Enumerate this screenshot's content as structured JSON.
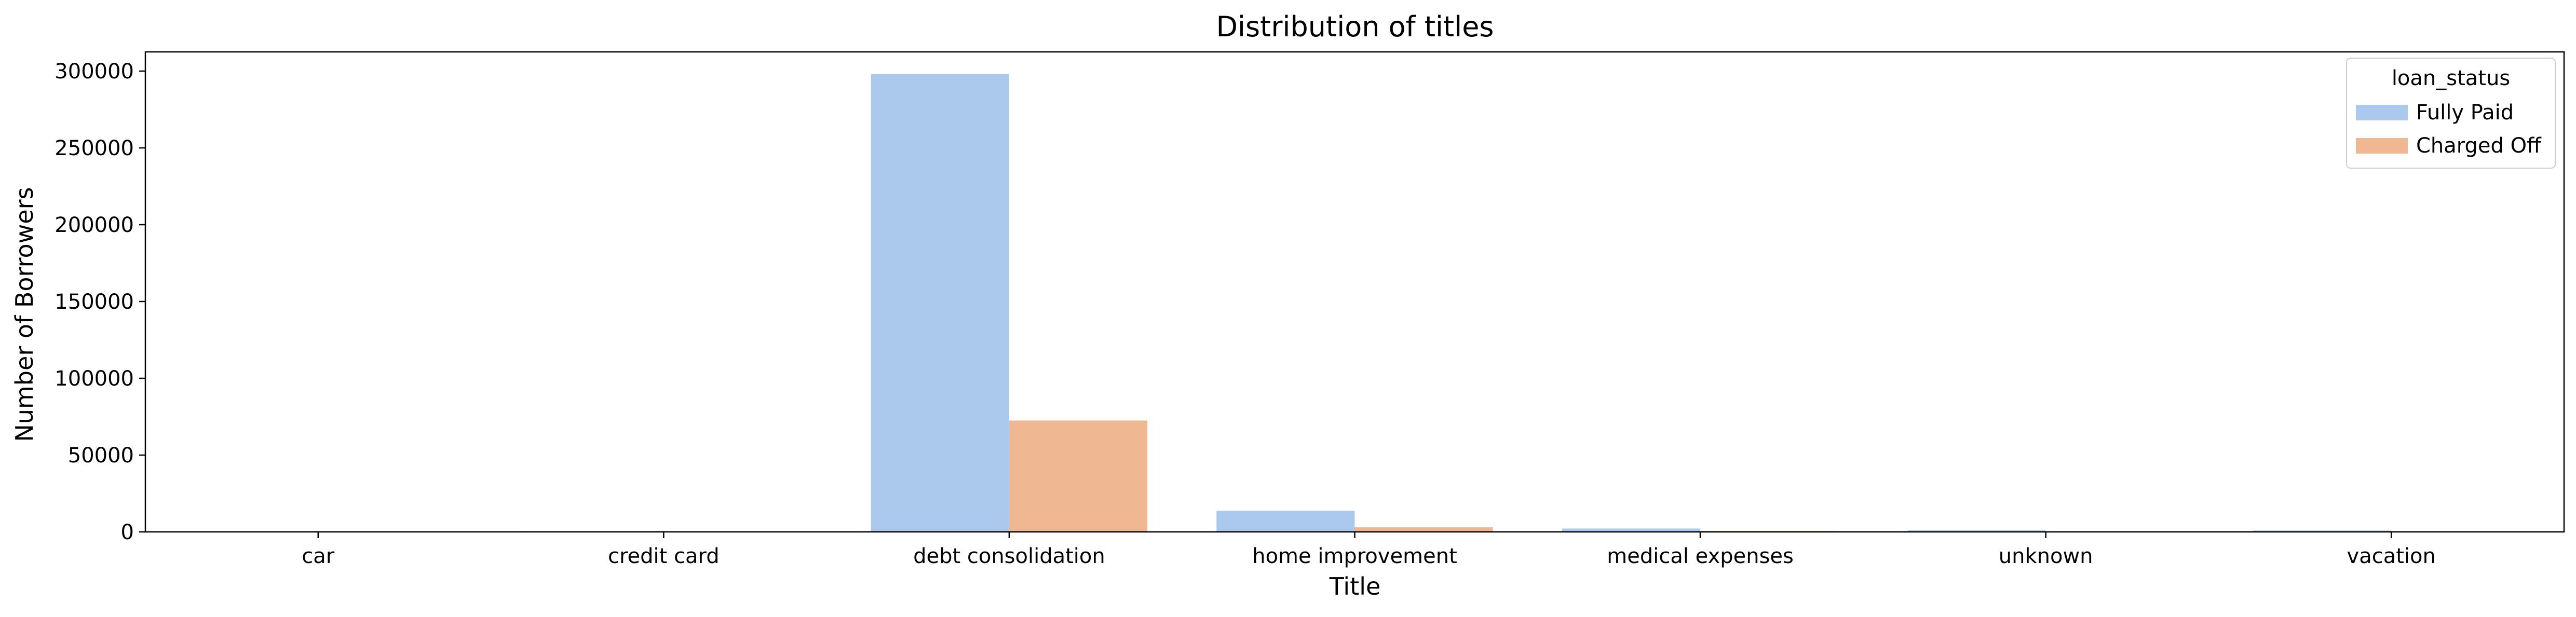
{
  "chart_data": {
    "type": "bar",
    "title": "Distribution of titles",
    "xlabel": "Title",
    "ylabel": "Number of Borrowers",
    "categories": [
      "car",
      "credit card",
      "debt consolidation",
      "home improvement",
      "medical expenses",
      "unknown",
      "vacation"
    ],
    "series": [
      {
        "name": "Fully Paid",
        "color": "#abc9ed",
        "values": [
          200,
          500,
          298000,
          13800,
          2200,
          1000,
          900
        ]
      },
      {
        "name": "Charged Off",
        "color": "#f0b892",
        "values": [
          50,
          120,
          72500,
          3000,
          550,
          250,
          180
        ]
      }
    ],
    "ylim": [
      0,
      312500
    ],
    "yticks": [
      0,
      50000,
      100000,
      150000,
      200000,
      250000,
      300000
    ],
    "legend": {
      "title": "loan_status",
      "placement": "top-right"
    },
    "grid": false
  }
}
